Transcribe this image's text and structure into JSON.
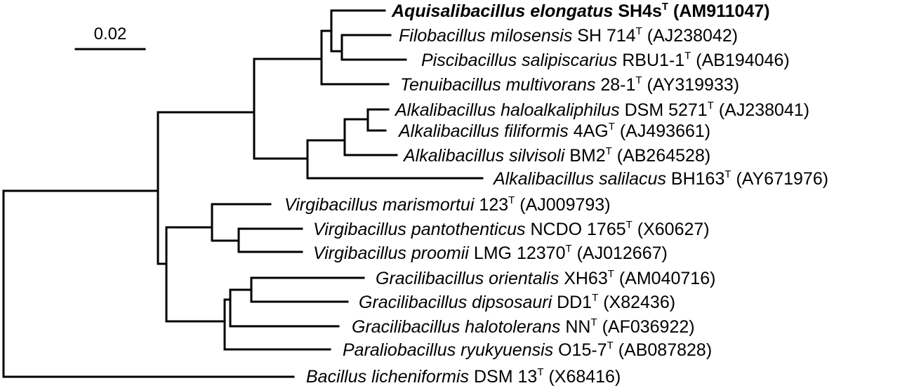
{
  "scale_bar": {
    "label": "0.02"
  },
  "leaves": [
    {
      "id": "aquisalibacillus",
      "genus": "Aquisalibacillus",
      "species": "elongatus",
      "strain": "SH4s",
      "sup": "T",
      "accession": "(AM911047)",
      "bold": true
    },
    {
      "id": "filobacillus",
      "genus": "Filobacillus",
      "species": "milosensis",
      "strain": "SH 714",
      "sup": "T",
      "accession": "(AJ238042)"
    },
    {
      "id": "piscibacillus",
      "genus": "Piscibacillus",
      "species": "salipiscarius",
      "strain": "RBU1-1",
      "sup": "T",
      "accession": "(AB194046)"
    },
    {
      "id": "tenuibacillus",
      "genus": "Tenuibacillus",
      "species": "multivorans",
      "strain": "28-1",
      "sup": "T",
      "accession": "(AY319933)"
    },
    {
      "id": "alk-haloalkaliphilus",
      "genus": "Alkalibacillus",
      "species": "haloalkaliphilus",
      "strain": "DSM 5271",
      "sup": "T",
      "accession": "(AJ238041)"
    },
    {
      "id": "alk-filiformis",
      "genus": "Alkalibacillus",
      "species": "filiformis",
      "strain": "4AG",
      "sup": "T",
      "accession": "(AJ493661)"
    },
    {
      "id": "alk-silvisoli",
      "genus": "Alkalibacillus",
      "species": "silvisoli",
      "strain": "BM2",
      "sup": "T",
      "accession": "(AB264528)"
    },
    {
      "id": "alk-salilacus",
      "genus": "Alkalibacillus",
      "species": "salilacus",
      "strain": "BH163",
      "sup": "T",
      "accession": "(AY671976)"
    },
    {
      "id": "vir-marismortui",
      "genus": "Virgibacillus",
      "species": "marismortui",
      "strain": "123",
      "sup": "T",
      "accession": "(AJ009793)"
    },
    {
      "id": "vir-pantothenticus",
      "genus": "Virgibacillus",
      "species": "pantothenticus",
      "strain": "NCDO 1765",
      "sup": "T",
      "accession": "(X60627)"
    },
    {
      "id": "vir-proomii",
      "genus": "Virgibacillus",
      "species": "proomii",
      "strain": "LMG 12370",
      "sup": "T",
      "accession": "(AJ012667)"
    },
    {
      "id": "gra-orientalis",
      "genus": "Gracilibacillus",
      "species": "orientalis",
      "strain": "XH63",
      "sup": "T",
      "accession": "(AM040716)"
    },
    {
      "id": "gra-dipsosauri",
      "genus": "Gracilibacillus",
      "species": "dipsosauri",
      "strain": "DD1",
      "sup": "T",
      "accession": "(X82436)"
    },
    {
      "id": "gra-halotolerans",
      "genus": "Gracilibacillus",
      "species": "halotolerans",
      "strain": "NN",
      "sup": "T",
      "accession": "(AF036922)"
    },
    {
      "id": "paraliobacillus",
      "genus": "Paraliobacillus",
      "species": "ryukyuensis",
      "strain": "O15-7",
      "sup": "T",
      "accession": "(AB087828)"
    },
    {
      "id": "bacillus",
      "genus": "Bacillus",
      "species": "licheniformis",
      "strain": "DSM 13",
      "sup": "T",
      "accession": "(X68416)"
    }
  ]
}
